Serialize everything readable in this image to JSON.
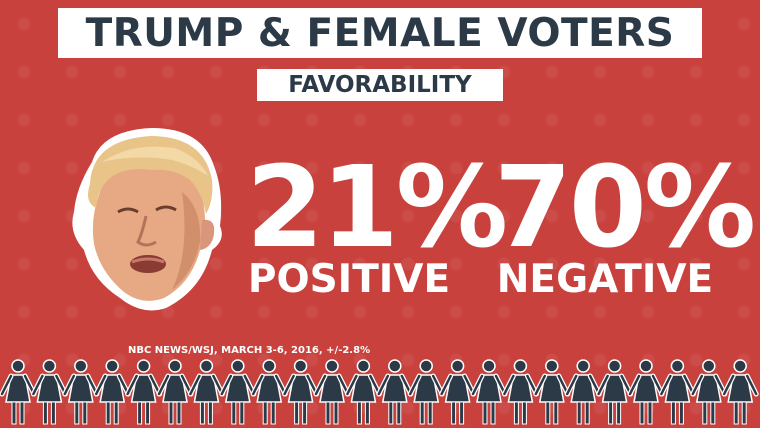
{
  "header": {
    "title": "TRUMP & FEMALE VOTERS",
    "subtitle": "FAVORABILITY"
  },
  "stats": {
    "positive": {
      "value": "21%",
      "label": "POSITIVE",
      "fraction": 0.21
    },
    "negative": {
      "value": "70%",
      "label": "NEGATIVE",
      "fraction": 0.7
    }
  },
  "source": "NBC NEWS/WSJ, MARCH 3-6, 2016, +/-2.8%",
  "colors": {
    "background": "#c8413d",
    "title_bar": "#ffffff",
    "title_text": "#2c3a48",
    "stat_text": "#ffffff",
    "figure_fill": "#2c3a48",
    "figure_outline": "#ffffff"
  },
  "icons": {
    "portrait": "person-portrait",
    "figure": "female-figure-icon"
  },
  "figure_count": 24
}
